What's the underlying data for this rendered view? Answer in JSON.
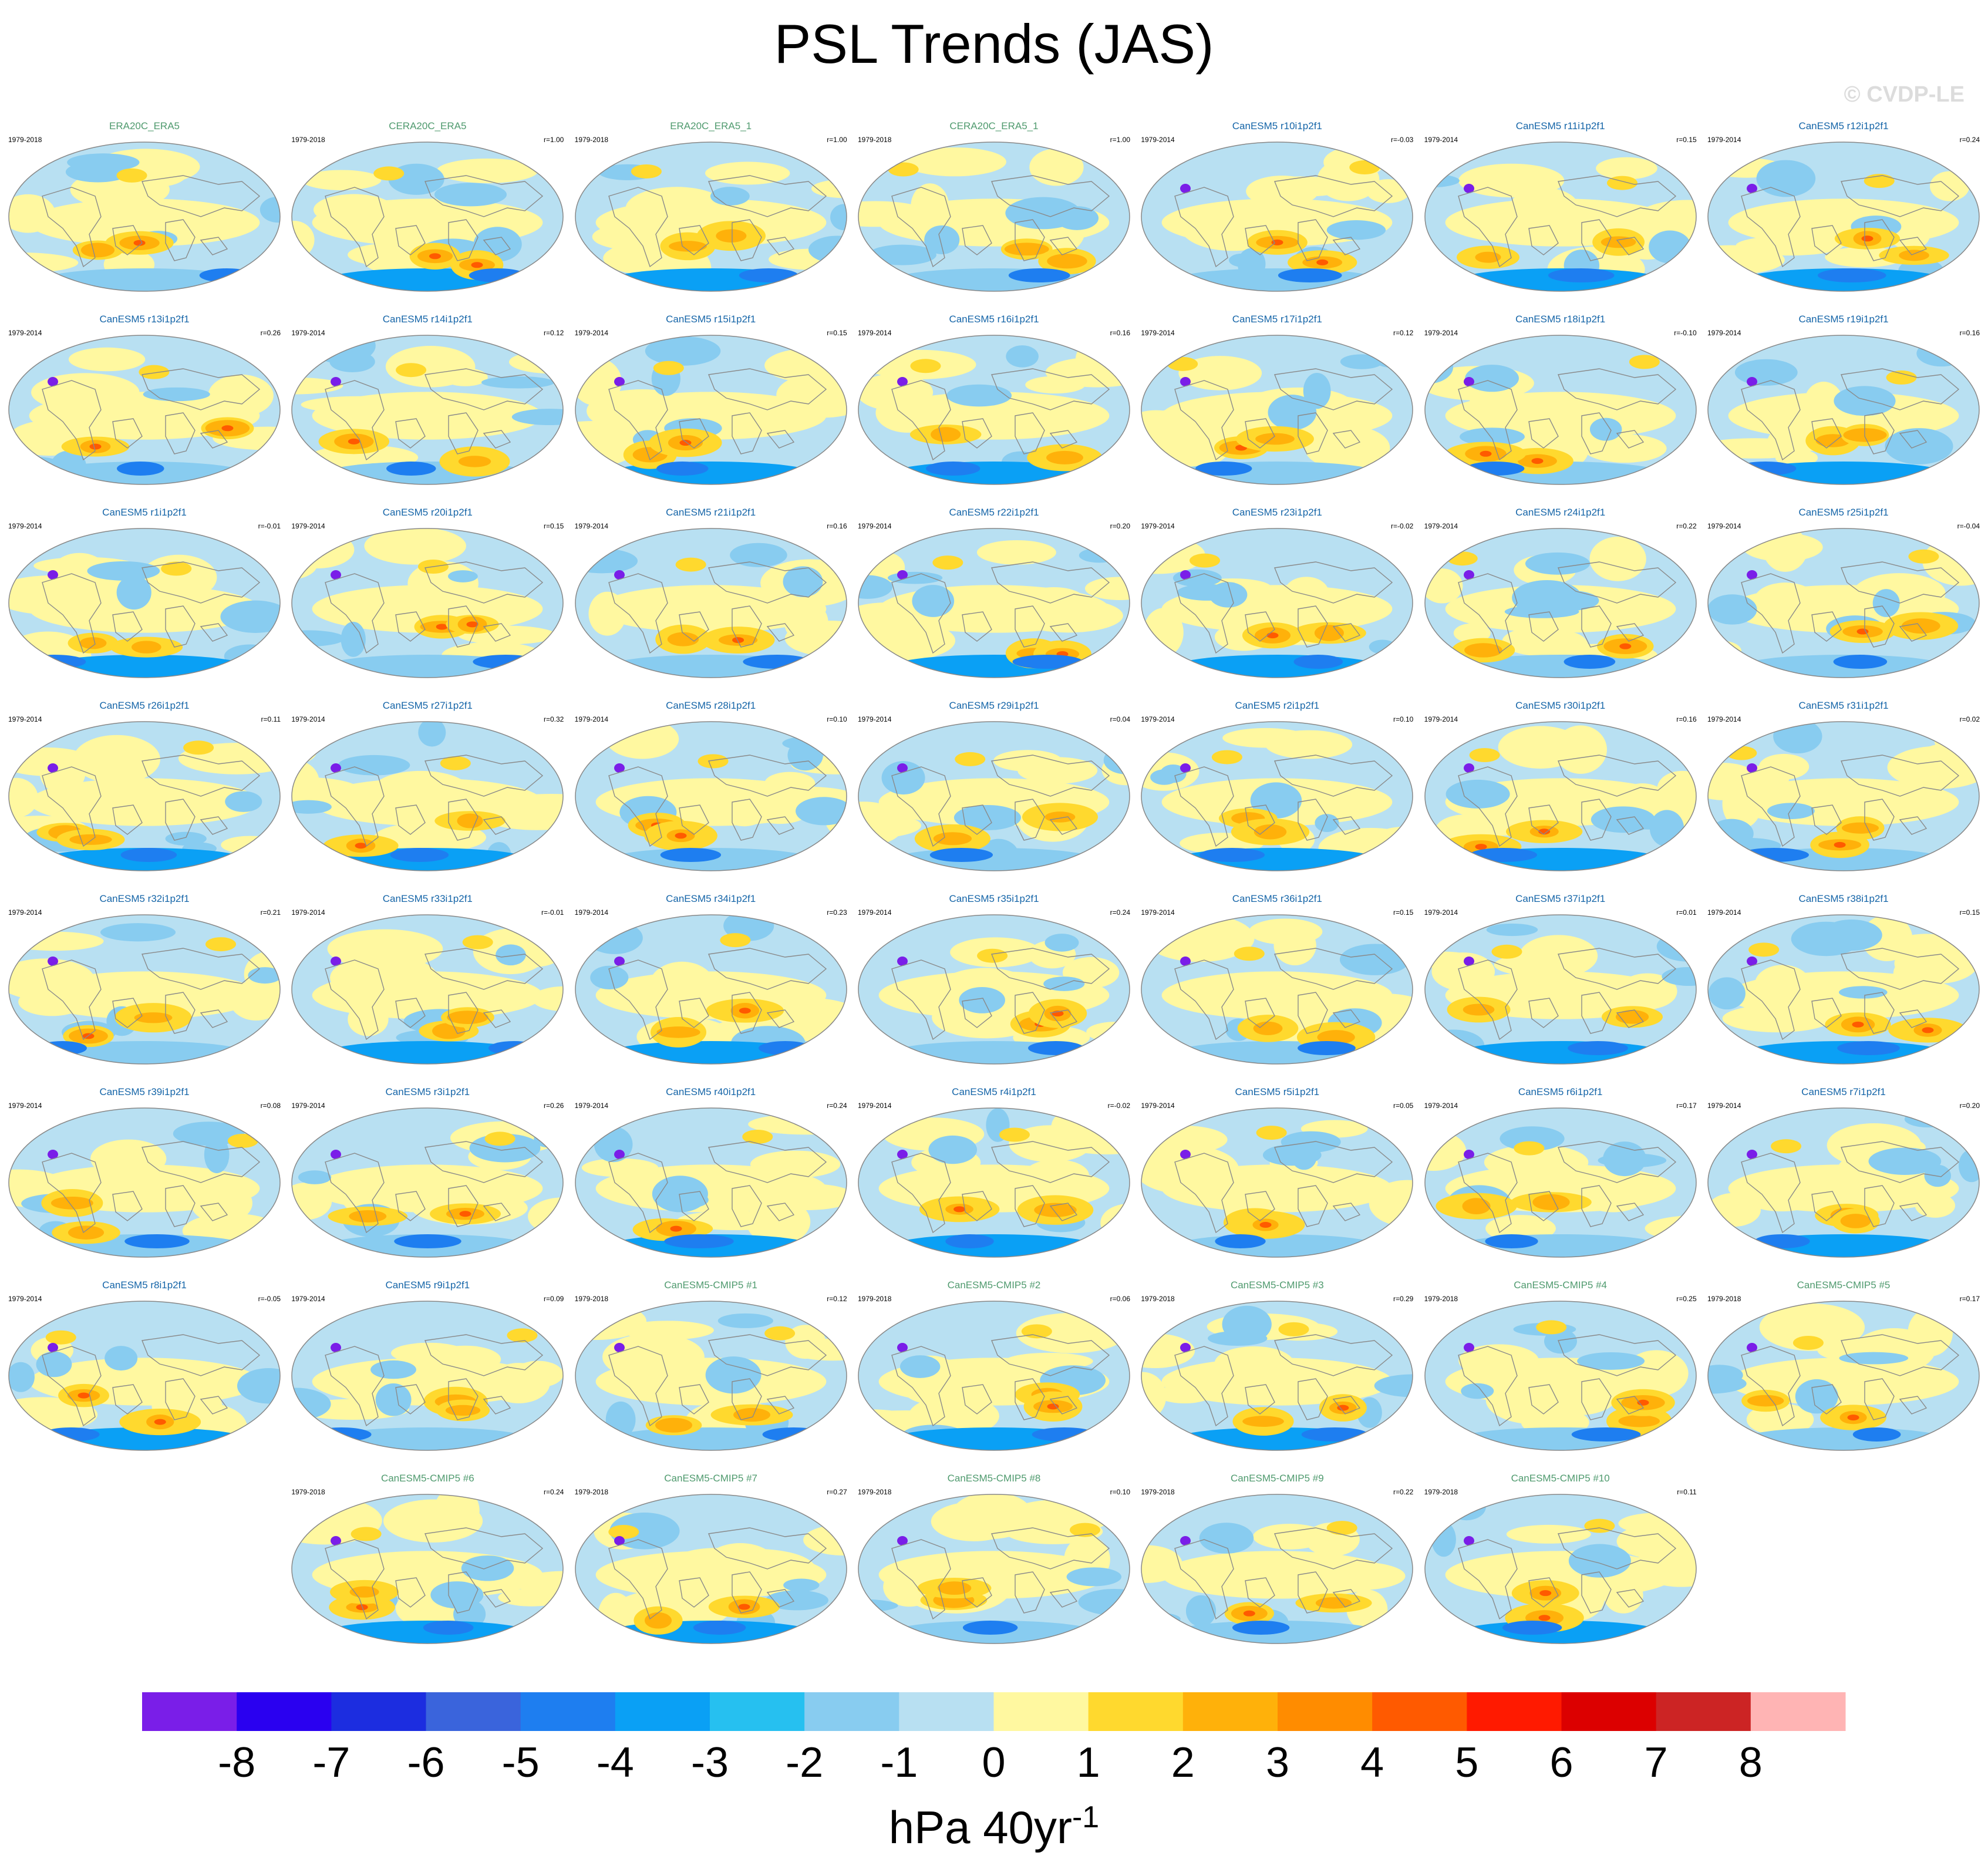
{
  "title": "PSL Trends (JAS)",
  "watermark": "© CVDP-LE",
  "units_base": "hPa 40yr",
  "units_exp": "-1",
  "colorbar": {
    "colors": [
      "#7a1ee8",
      "#2a00f0",
      "#1c2de0",
      "#3a64dc",
      "#1e7ef0",
      "#0aa0f5",
      "#26c0f0",
      "#88ccf0",
      "#b8e0f2",
      "#fff8a0",
      "#ffd92e",
      "#ffb10a",
      "#ff8c00",
      "#ff5a00",
      "#ff1a00",
      "#dc0000",
      "#cc2424",
      "#ffb4b4"
    ],
    "labels": [
      "-8",
      "-7",
      "-6",
      "-5",
      "-4",
      "-3",
      "-2",
      "-1",
      "0",
      "1",
      "2",
      "3",
      "4",
      "5",
      "6",
      "7",
      "8"
    ]
  },
  "panels": [
    {
      "name": "ERA20C_ERA5",
      "period": "1979-2018",
      "r": "",
      "color": "#4f9a6e"
    },
    {
      "name": "CERA20C_ERA5",
      "period": "1979-2018",
      "r": "r=1.00",
      "color": "#4f9a6e"
    },
    {
      "name": "ERA20C_ERA5_1",
      "period": "1979-2018",
      "r": "r=1.00",
      "color": "#4f9a6e"
    },
    {
      "name": "CERA20C_ERA5_1",
      "period": "1979-2018",
      "r": "r=1.00",
      "color": "#4f9a6e"
    },
    {
      "name": "CanESM5 r10i1p2f1",
      "period": "1979-2014",
      "r": "r=-0.03",
      "color": "#1565a8"
    },
    {
      "name": "CanESM5 r11i1p2f1",
      "period": "1979-2014",
      "r": "r=0.15",
      "color": "#1565a8"
    },
    {
      "name": "CanESM5 r12i1p2f1",
      "period": "1979-2014",
      "r": "r=0.24",
      "color": "#1565a8"
    },
    {
      "name": "CanESM5 r13i1p2f1",
      "period": "1979-2014",
      "r": "r=0.26",
      "color": "#1565a8"
    },
    {
      "name": "CanESM5 r14i1p2f1",
      "period": "1979-2014",
      "r": "r=0.12",
      "color": "#1565a8"
    },
    {
      "name": "CanESM5 r15i1p2f1",
      "period": "1979-2014",
      "r": "r=0.15",
      "color": "#1565a8"
    },
    {
      "name": "CanESM5 r16i1p2f1",
      "period": "1979-2014",
      "r": "r=0.16",
      "color": "#1565a8"
    },
    {
      "name": "CanESM5 r17i1p2f1",
      "period": "1979-2014",
      "r": "r=0.12",
      "color": "#1565a8"
    },
    {
      "name": "CanESM5 r18i1p2f1",
      "period": "1979-2014",
      "r": "r=-0.10",
      "color": "#1565a8"
    },
    {
      "name": "CanESM5 r19i1p2f1",
      "period": "1979-2014",
      "r": "r=0.16",
      "color": "#1565a8"
    },
    {
      "name": "CanESM5 r1i1p2f1",
      "period": "1979-2014",
      "r": "r=-0.01",
      "color": "#1565a8"
    },
    {
      "name": "CanESM5 r20i1p2f1",
      "period": "1979-2014",
      "r": "r=0.15",
      "color": "#1565a8"
    },
    {
      "name": "CanESM5 r21i1p2f1",
      "period": "1979-2014",
      "r": "r=0.16",
      "color": "#1565a8"
    },
    {
      "name": "CanESM5 r22i1p2f1",
      "period": "1979-2014",
      "r": "r=0.20",
      "color": "#1565a8"
    },
    {
      "name": "CanESM5 r23i1p2f1",
      "period": "1979-2014",
      "r": "r=-0.02",
      "color": "#1565a8"
    },
    {
      "name": "CanESM5 r24i1p2f1",
      "period": "1979-2014",
      "r": "r=0.22",
      "color": "#1565a8"
    },
    {
      "name": "CanESM5 r25i1p2f1",
      "period": "1979-2014",
      "r": "r=-0.04",
      "color": "#1565a8"
    },
    {
      "name": "CanESM5 r26i1p2f1",
      "period": "1979-2014",
      "r": "r=0.11",
      "color": "#1565a8"
    },
    {
      "name": "CanESM5 r27i1p2f1",
      "period": "1979-2014",
      "r": "r=0.32",
      "color": "#1565a8"
    },
    {
      "name": "CanESM5 r28i1p2f1",
      "period": "1979-2014",
      "r": "r=0.10",
      "color": "#1565a8"
    },
    {
      "name": "CanESM5 r29i1p2f1",
      "period": "1979-2014",
      "r": "r=0.04",
      "color": "#1565a8"
    },
    {
      "name": "CanESM5 r2i1p2f1",
      "period": "1979-2014",
      "r": "r=0.10",
      "color": "#1565a8"
    },
    {
      "name": "CanESM5 r30i1p2f1",
      "period": "1979-2014",
      "r": "r=0.16",
      "color": "#1565a8"
    },
    {
      "name": "CanESM5 r31i1p2f1",
      "period": "1979-2014",
      "r": "r=0.02",
      "color": "#1565a8"
    },
    {
      "name": "CanESM5 r32i1p2f1",
      "period": "1979-2014",
      "r": "r=0.21",
      "color": "#1565a8"
    },
    {
      "name": "CanESM5 r33i1p2f1",
      "period": "1979-2014",
      "r": "r=-0.01",
      "color": "#1565a8"
    },
    {
      "name": "CanESM5 r34i1p2f1",
      "period": "1979-2014",
      "r": "r=0.23",
      "color": "#1565a8"
    },
    {
      "name": "CanESM5 r35i1p2f1",
      "period": "1979-2014",
      "r": "r=0.24",
      "color": "#1565a8"
    },
    {
      "name": "CanESM5 r36i1p2f1",
      "period": "1979-2014",
      "r": "r=0.15",
      "color": "#1565a8"
    },
    {
      "name": "CanESM5 r37i1p2f1",
      "period": "1979-2014",
      "r": "r=0.01",
      "color": "#1565a8"
    },
    {
      "name": "CanESM5 r38i1p2f1",
      "period": "1979-2014",
      "r": "r=0.15",
      "color": "#1565a8"
    },
    {
      "name": "CanESM5 r39i1p2f1",
      "period": "1979-2014",
      "r": "r=0.08",
      "color": "#1565a8"
    },
    {
      "name": "CanESM5 r3i1p2f1",
      "period": "1979-2014",
      "r": "r=0.26",
      "color": "#1565a8"
    },
    {
      "name": "CanESM5 r40i1p2f1",
      "period": "1979-2014",
      "r": "r=0.24",
      "color": "#1565a8"
    },
    {
      "name": "CanESM5 r4i1p2f1",
      "period": "1979-2014",
      "r": "r=-0.02",
      "color": "#1565a8"
    },
    {
      "name": "CanESM5 r5i1p2f1",
      "period": "1979-2014",
      "r": "r=0.05",
      "color": "#1565a8"
    },
    {
      "name": "CanESM5 r6i1p2f1",
      "period": "1979-2014",
      "r": "r=0.17",
      "color": "#1565a8"
    },
    {
      "name": "CanESM5 r7i1p2f1",
      "period": "1979-2014",
      "r": "r=0.20",
      "color": "#1565a8"
    },
    {
      "name": "CanESM5 r8i1p2f1",
      "period": "1979-2014",
      "r": "r=-0.05",
      "color": "#1565a8"
    },
    {
      "name": "CanESM5 r9i1p2f1",
      "period": "1979-2014",
      "r": "r=0.09",
      "color": "#1565a8"
    },
    {
      "name": "CanESM5-CMIP5 #1",
      "period": "1979-2018",
      "r": "r=0.12",
      "color": "#4f9a6e"
    },
    {
      "name": "CanESM5-CMIP5 #2",
      "period": "1979-2018",
      "r": "r=0.06",
      "color": "#4f9a6e"
    },
    {
      "name": "CanESM5-CMIP5 #3",
      "period": "1979-2018",
      "r": "r=0.29",
      "color": "#4f9a6e"
    },
    {
      "name": "CanESM5-CMIP5 #4",
      "period": "1979-2018",
      "r": "r=0.25",
      "color": "#4f9a6e"
    },
    {
      "name": "CanESM5-CMIP5 #5",
      "period": "1979-2018",
      "r": "r=0.17",
      "color": "#4f9a6e"
    },
    {
      "name": "CanESM5-CMIP5 #6",
      "period": "1979-2018",
      "r": "r=0.24",
      "color": "#4f9a6e"
    },
    {
      "name": "CanESM5-CMIP5 #7",
      "period": "1979-2018",
      "r": "r=0.27",
      "color": "#4f9a6e"
    },
    {
      "name": "CanESM5-CMIP5 #8",
      "period": "1979-2018",
      "r": "r=0.10",
      "color": "#4f9a6e"
    },
    {
      "name": "CanESM5-CMIP5 #9",
      "period": "1979-2018",
      "r": "r=0.22",
      "color": "#4f9a6e"
    },
    {
      "name": "CanESM5-CMIP5 #10",
      "period": "1979-2018",
      "r": "r=0.11",
      "color": "#4f9a6e"
    }
  ],
  "chart_data": {
    "type": "heatmap",
    "title": "PSL Trends (JAS)",
    "variable": "PSL",
    "season": "JAS",
    "units": "hPa 40yr-1",
    "levels": [
      -8,
      -7,
      -6,
      -5,
      -4,
      -3,
      -2,
      -1,
      0,
      1,
      2,
      3,
      4,
      5,
      6,
      7,
      8
    ],
    "panel_count": 54
  }
}
